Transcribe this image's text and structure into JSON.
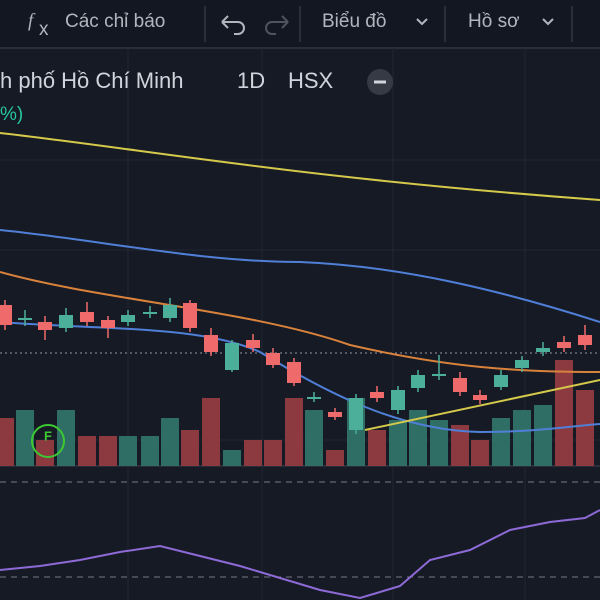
{
  "toolbar": {
    "indicators": "Các chỉ báo",
    "chart": "Biểu đồ",
    "profile": "Hồ sơ"
  },
  "legend": {
    "symbol": "h phố Hồ Chí Minh",
    "interval": "1D",
    "exchange": "HSX",
    "indicator": "%)"
  },
  "marker": "F"
}
